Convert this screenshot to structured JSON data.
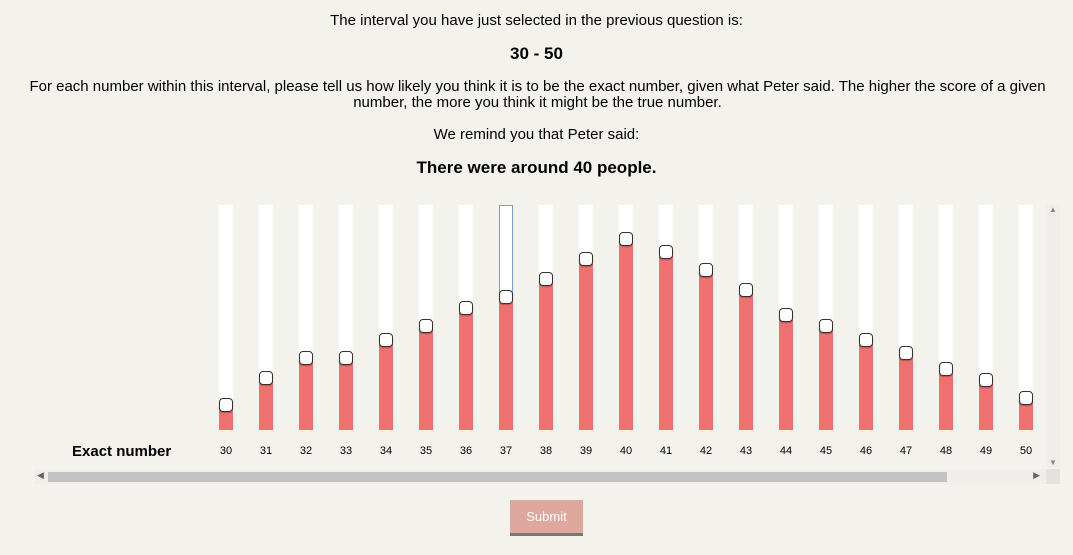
{
  "intro_text": "The interval you have just selected in the previous question is:",
  "selected_interval": "30 - 50",
  "instruction_text": "For each number within this interval, please tell us how likely you think it is to be the exact number, given what Peter said. The higher the score of a given number, the more you think it might be the true number.",
  "reminder_text": "We remind you that Peter said:",
  "peter_quote": "There were around 40 people.",
  "row_label": "Exact number",
  "sliders": [
    {
      "number": "30",
      "score": 0.11
    },
    {
      "number": "31",
      "score": 0.23
    },
    {
      "number": "32",
      "score": 0.32
    },
    {
      "number": "33",
      "score": 0.32
    },
    {
      "number": "34",
      "score": 0.4
    },
    {
      "number": "35",
      "score": 0.46
    },
    {
      "number": "36",
      "score": 0.54
    },
    {
      "number": "37",
      "score": 0.59
    },
    {
      "number": "38",
      "score": 0.67
    },
    {
      "number": "39",
      "score": 0.76
    },
    {
      "number": "40",
      "score": 0.85
    },
    {
      "number": "41",
      "score": 0.79
    },
    {
      "number": "42",
      "score": 0.71
    },
    {
      "number": "43",
      "score": 0.62
    },
    {
      "number": "44",
      "score": 0.51
    },
    {
      "number": "45",
      "score": 0.46
    },
    {
      "number": "46",
      "score": 0.4
    },
    {
      "number": "47",
      "score": 0.34
    },
    {
      "number": "48",
      "score": 0.27
    },
    {
      "number": "49",
      "score": 0.22
    },
    {
      "number": "50",
      "score": 0.14
    }
  ],
  "selected_number": "37",
  "colors": {
    "fill": "#f07070",
    "track": "#ffffff",
    "background": "#f4f2ed",
    "submit_background": "#dfa89e",
    "selected_outline": "#7b9be0"
  },
  "submit_label": "Submit"
}
